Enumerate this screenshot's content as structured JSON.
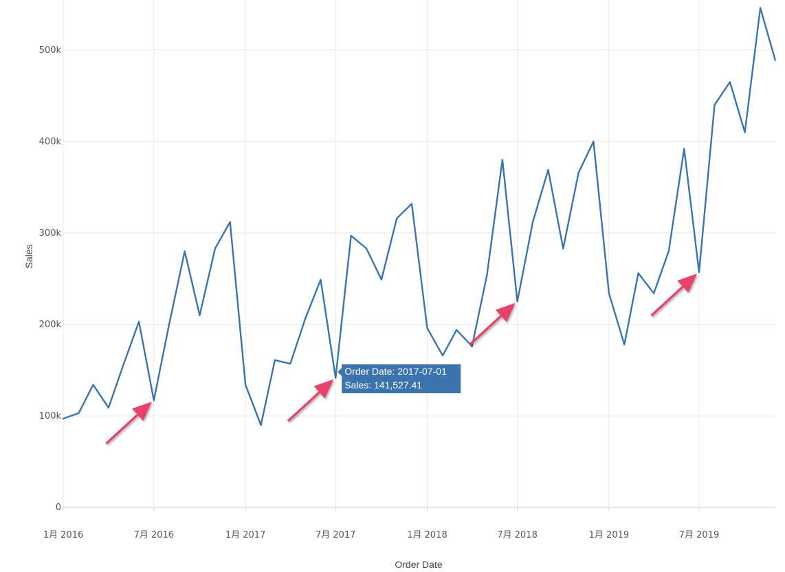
{
  "chart_data": {
    "type": "line",
    "xlabel": "Order Date",
    "ylabel": "Sales",
    "ylim": [
      0,
      550000
    ],
    "y_ticks": [
      {
        "value": 0,
        "label": "0"
      },
      {
        "value": 100000,
        "label": "100k"
      },
      {
        "value": 200000,
        "label": "200k"
      },
      {
        "value": 300000,
        "label": "300k"
      },
      {
        "value": 400000,
        "label": "400k"
      },
      {
        "value": 500000,
        "label": "500k"
      }
    ],
    "x_ticks": [
      {
        "date": "2016-01-01",
        "label": "1月 2016"
      },
      {
        "date": "2016-07-01",
        "label": "7月 2016"
      },
      {
        "date": "2017-01-01",
        "label": "1月 2017"
      },
      {
        "date": "2017-07-01",
        "label": "7月 2017"
      },
      {
        "date": "2018-01-01",
        "label": "1月 2018"
      },
      {
        "date": "2018-07-01",
        "label": "7月 2018"
      },
      {
        "date": "2019-01-01",
        "label": "1月 2019"
      },
      {
        "date": "2019-07-01",
        "label": "7月 2019"
      }
    ],
    "grid": true,
    "line_color": "#3b74ad",
    "arrow_color": "#e8436a",
    "series": [
      {
        "x": [
          "2016-01-01",
          "2016-02-01",
          "2016-03-01",
          "2016-04-01",
          "2016-05-01",
          "2016-06-01",
          "2016-07-01",
          "2016-08-01",
          "2016-09-01",
          "2016-10-01",
          "2016-11-01",
          "2016-12-01",
          "2017-01-01",
          "2017-02-01",
          "2017-03-01",
          "2017-04-01",
          "2017-05-01",
          "2017-06-01",
          "2017-07-01",
          "2017-08-01",
          "2017-09-01",
          "2017-10-01",
          "2017-11-01",
          "2017-12-01",
          "2018-01-01",
          "2018-02-01",
          "2018-03-01",
          "2018-04-01",
          "2018-05-01",
          "2018-06-01",
          "2018-07-01",
          "2018-08-01",
          "2018-09-01",
          "2018-10-01",
          "2018-11-01",
          "2018-12-01",
          "2019-01-01",
          "2019-02-01",
          "2019-03-01",
          "2019-04-01",
          "2019-05-01",
          "2019-06-01",
          "2019-07-01",
          "2019-08-01",
          "2019-09-01",
          "2019-10-01",
          "2019-11-01",
          "2019-12-01"
        ],
        "values": [
          97000,
          103000,
          134000,
          109000,
          156000,
          203000,
          117000,
          201000,
          280000,
          210000,
          283000,
          312000,
          134000,
          90000,
          161000,
          157000,
          206000,
          249000,
          141527.41,
          297000,
          283000,
          249000,
          316000,
          332000,
          196000,
          166000,
          194000,
          176000,
          254000,
          380000,
          225000,
          312000,
          369000,
          283000,
          366000,
          400000,
          234000,
          178000,
          256000,
          234000,
          280000,
          392000,
          257000,
          440000,
          465000,
          410000,
          546000,
          489000
        ]
      }
    ],
    "tooltip": {
      "date": "2017-07-01",
      "line1": "Order Date: 2017-07-01",
      "line2": "Sales: 141,527.41"
    },
    "arrows_point_to": [
      "2016-07-01",
      "2017-07-01",
      "2018-07-01",
      "2019-07-01"
    ]
  }
}
